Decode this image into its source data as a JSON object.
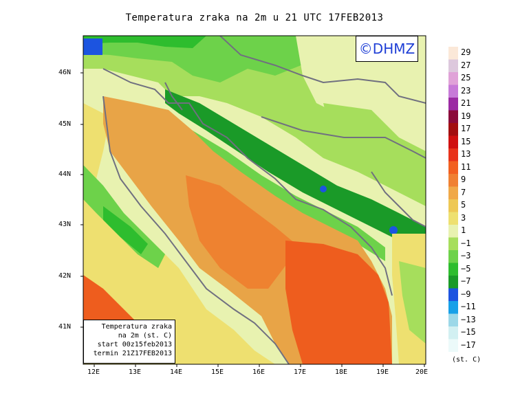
{
  "title": "Temperatura zraka na 2m u 21 UTC 17FEB2013",
  "credit": "©DHMZ",
  "info_box": {
    "line1": "Temperatura zraka",
    "line2": "na 2m (st. C)",
    "line3": "start 00z15feb2013",
    "line4": "termin 21Z17FEB2013"
  },
  "axes": {
    "lat_ticks": [
      "46N",
      "45N",
      "44N",
      "43N",
      "42N",
      "41N"
    ],
    "lon_ticks": [
      "12E",
      "13E",
      "14E",
      "15E",
      "16E",
      "17E",
      "18E",
      "19E",
      "20E"
    ]
  },
  "legend": {
    "unit": "(st. C)",
    "labels": [
      "29",
      "27",
      "25",
      "23",
      "21",
      "19",
      "17",
      "15",
      "13",
      "11",
      "9",
      "7",
      "5",
      "3",
      "1",
      "−1",
      "−3",
      "−5",
      "−7",
      "−9",
      "−11",
      "−13",
      "−15",
      "−17"
    ],
    "colors": [
      "#fbe8d8",
      "#ddc8dd",
      "#e0a2d8",
      "#c77ad8",
      "#9b2aa3",
      "#8b0a3a",
      "#a30e10",
      "#d01010",
      "#e8321a",
      "#f26020",
      "#f08032",
      "#f0a848",
      "#eec855",
      "#eee070",
      "#e8f2b0",
      "#a6de5c",
      "#6dd24a",
      "#2ebd2e",
      "#1a9a28",
      "#1c54e0",
      "#17a0e8",
      "#9cd8e8",
      "#d2f0f2",
      "#ecfafa"
    ]
  },
  "map_palette": {
    "sea_warm": "#ee5d1e",
    "sea_mid": "#ee8230",
    "sea_cool": "#e8a447",
    "coast": "#eec855",
    "lowland": "#eee070",
    "green_light": "#a6de5c",
    "green": "#6dd24a",
    "green_mid": "#2ebd2e",
    "green_dark": "#1a9a28",
    "blue": "#1c54e0",
    "border": "#707080"
  }
}
